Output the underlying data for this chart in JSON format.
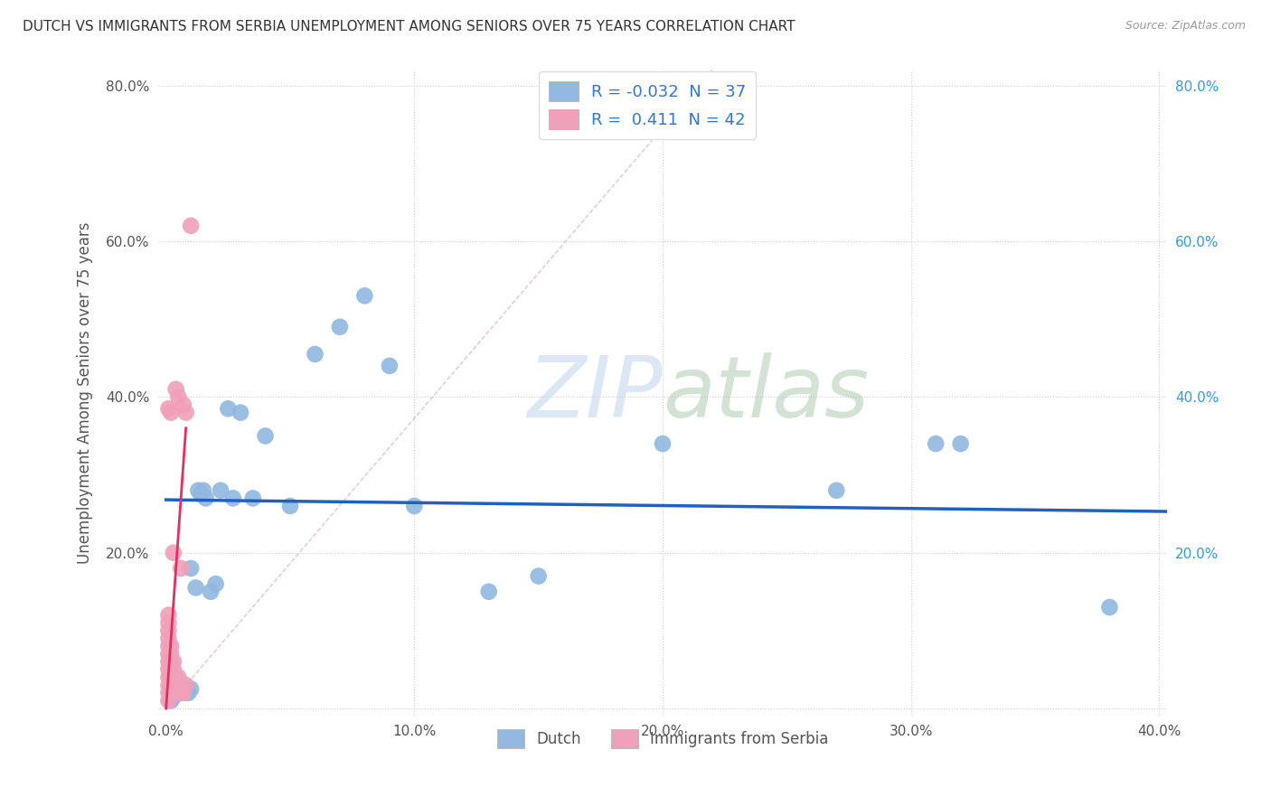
{
  "title": "DUTCH VS IMMIGRANTS FROM SERBIA UNEMPLOYMENT AMONG SENIORS OVER 75 YEARS CORRELATION CHART",
  "source": "Source: ZipAtlas.com",
  "ylabel": "Unemployment Among Seniors over 75 years",
  "x_tick_labels": [
    "0.0%",
    "",
    "",
    "",
    "",
    "10.0%",
    "",
    "",
    "",
    "",
    "20.0%",
    "",
    "",
    "",
    "",
    "30.0%",
    "",
    "",
    "",
    "",
    "40.0%"
  ],
  "x_tick_values": [
    0.0,
    0.02,
    0.04,
    0.06,
    0.08,
    0.1,
    0.12,
    0.14,
    0.16,
    0.18,
    0.2,
    0.22,
    0.24,
    0.26,
    0.28,
    0.3,
    0.32,
    0.34,
    0.36,
    0.38,
    0.4
  ],
  "y_tick_labels": [
    "",
    "20.0%",
    "40.0%",
    "60.0%",
    "80.0%"
  ],
  "y_tick_values": [
    0.0,
    0.2,
    0.4,
    0.6,
    0.8
  ],
  "xlim": [
    -0.003,
    0.403
  ],
  "ylim": [
    -0.01,
    0.82
  ],
  "legend_entries": [
    "Dutch",
    "Immigrants from Serbia"
  ],
  "legend_R": [
    -0.032,
    0.411
  ],
  "legend_N": [
    37,
    42
  ],
  "dutch_color": "#90b8e0",
  "serbia_color": "#f0a0b8",
  "dutch_line_color": "#2060c0",
  "serbia_line_color": "#e03060",
  "watermark_color": "#c5d8ef",
  "dutch_x": [
    0.002,
    0.003,
    0.004,
    0.005,
    0.005,
    0.006,
    0.007,
    0.008,
    0.009,
    0.01,
    0.01,
    0.012,
    0.013,
    0.014,
    0.015,
    0.016,
    0.018,
    0.02,
    0.022,
    0.025,
    0.027,
    0.03,
    0.035,
    0.04,
    0.05,
    0.06,
    0.07,
    0.08,
    0.09,
    0.1,
    0.13,
    0.15,
    0.2,
    0.27,
    0.31,
    0.32,
    0.38
  ],
  "dutch_y": [
    0.01,
    0.015,
    0.02,
    0.025,
    0.02,
    0.02,
    0.025,
    0.025,
    0.02,
    0.025,
    0.18,
    0.155,
    0.28,
    0.275,
    0.28,
    0.27,
    0.15,
    0.16,
    0.28,
    0.385,
    0.27,
    0.38,
    0.27,
    0.35,
    0.26,
    0.455,
    0.49,
    0.53,
    0.44,
    0.26,
    0.15,
    0.17,
    0.34,
    0.28,
    0.34,
    0.34,
    0.13
  ],
  "serbia_x": [
    0.001,
    0.001,
    0.001,
    0.001,
    0.001,
    0.001,
    0.001,
    0.001,
    0.001,
    0.001,
    0.001,
    0.001,
    0.001,
    0.002,
    0.002,
    0.002,
    0.002,
    0.002,
    0.002,
    0.002,
    0.002,
    0.003,
    0.003,
    0.003,
    0.003,
    0.003,
    0.003,
    0.004,
    0.004,
    0.004,
    0.004,
    0.005,
    0.005,
    0.005,
    0.005,
    0.006,
    0.006,
    0.007,
    0.007,
    0.008,
    0.008,
    0.01
  ],
  "serbia_y": [
    0.01,
    0.02,
    0.03,
    0.04,
    0.05,
    0.06,
    0.07,
    0.08,
    0.09,
    0.1,
    0.11,
    0.12,
    0.385,
    0.02,
    0.03,
    0.04,
    0.05,
    0.06,
    0.07,
    0.08,
    0.38,
    0.02,
    0.03,
    0.04,
    0.05,
    0.06,
    0.2,
    0.02,
    0.03,
    0.04,
    0.41,
    0.02,
    0.03,
    0.04,
    0.4,
    0.02,
    0.18,
    0.02,
    0.39,
    0.03,
    0.38,
    0.62
  ],
  "dutch_trend": [
    0.0,
    0.403,
    0.268,
    0.253
  ],
  "serbia_trend_x0": 0.0,
  "serbia_trend_x1": 0.01,
  "serbia_trend_y0": 0.0,
  "serbia_trend_y1": 0.36
}
